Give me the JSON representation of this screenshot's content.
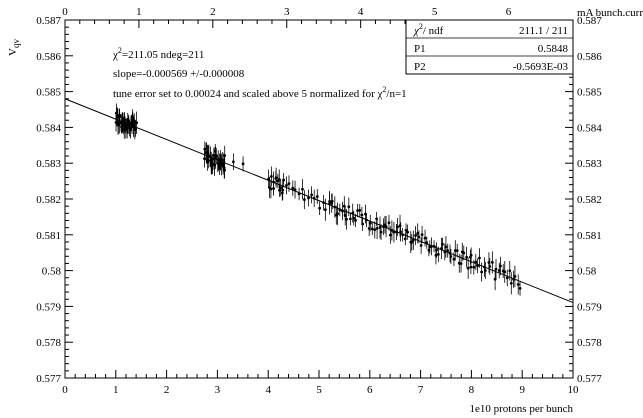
{
  "chart_data": {
    "type": "scatter",
    "xlabel": "1e10 protons per bunch",
    "ylabel": "V",
    "ylabel_sub": "qv",
    "top_axis_label": "mA bunch.curr",
    "xlim": [
      0,
      10
    ],
    "ylim": [
      0.577,
      0.587
    ],
    "x_ticks": [
      "0",
      "1",
      "2",
      "3",
      "4",
      "5",
      "6",
      "7",
      "8",
      "9",
      "10"
    ],
    "y_ticks": [
      "0.577",
      "0.578",
      "0.579",
      "0.58",
      "0.581",
      "0.582",
      "0.583",
      "0.584",
      "0.585",
      "0.586",
      "0.587"
    ],
    "top_ticks": [
      "0",
      "1",
      "2",
      "3",
      "4",
      "5",
      "6"
    ],
    "top_tick_positions": [
      0,
      1.455,
      2.91,
      4.365,
      5.82,
      7.275,
      8.73
    ],
    "annotations": {
      "chi2_line": "=211.05 ndeg=211",
      "slope_line": "slope=-0.000569 +/-0.000008",
      "tune_line_a": "tune error set to 0.00024 and scaled above 5  normalized for ",
      "tune_line_b": "/n=1"
    },
    "stats_box": {
      "rows": [
        {
          "label": "/ ndf",
          "value": "211.1   /   211"
        },
        {
          "label": "P1",
          "value": "0.5848"
        },
        {
          "label": "P2",
          "value": "-0.5693E-03"
        }
      ]
    },
    "fit": {
      "p1": 0.5848,
      "p2": -0.0005693,
      "x_range": [
        0,
        10
      ]
    },
    "groups": [
      {
        "x_range": [
          1.0,
          1.4
        ],
        "n": 40,
        "err": 0.00024
      },
      {
        "x_range": [
          2.75,
          3.15
        ],
        "n": 35,
        "err": 0.00024
      },
      {
        "x_range": [
          3.3,
          3.5
        ],
        "n": 2,
        "err": 0.00024
      },
      {
        "x_range": [
          4.0,
          4.3
        ],
        "n": 14,
        "err": 0.00024
      },
      {
        "x_range": [
          4.3,
          5.2
        ],
        "n": 16,
        "err": 0.00024
      },
      {
        "x_range": [
          5.2,
          8.0
        ],
        "n": 80,
        "err": 0.00024
      },
      {
        "x_range": [
          8.0,
          8.95
        ],
        "n": 24,
        "err": 0.00024
      }
    ]
  }
}
